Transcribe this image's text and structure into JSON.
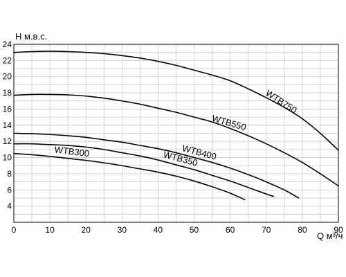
{
  "chart_data": {
    "type": "line",
    "xlabel": "Q м³/ч",
    "ylabel": "Н м.в.с.",
    "xlim": [
      0,
      90
    ],
    "ylim": [
      2,
      24
    ],
    "xticks": [
      0,
      10,
      20,
      30,
      40,
      50,
      60,
      70,
      80,
      90
    ],
    "yticks": [
      4,
      6,
      8,
      10,
      12,
      14,
      16,
      18,
      20,
      22,
      24
    ],
    "grid": true,
    "series": [
      {
        "name": "WTB750",
        "x": [
          0,
          5,
          10,
          15,
          20,
          25,
          30,
          35,
          40,
          45,
          50,
          55,
          60,
          65,
          70,
          75,
          80,
          85,
          90
        ],
        "y": [
          23.0,
          23.1,
          23.15,
          23.1,
          23.0,
          22.85,
          22.6,
          22.3,
          21.9,
          21.4,
          20.8,
          20.2,
          19.5,
          18.5,
          17.4,
          16.2,
          14.8,
          13.0,
          10.9
        ]
      },
      {
        "name": "WTB550",
        "x": [
          0,
          5,
          10,
          15,
          20,
          25,
          30,
          35,
          40,
          45,
          50,
          55,
          60,
          65,
          70,
          75,
          80,
          85,
          90
        ],
        "y": [
          17.7,
          17.8,
          17.8,
          17.75,
          17.6,
          17.35,
          17.0,
          16.6,
          16.1,
          15.6,
          15.0,
          14.4,
          13.6,
          12.7,
          11.7,
          10.6,
          9.4,
          8.0,
          6.5
        ]
      },
      {
        "name": "WTB400",
        "x": [
          0,
          5,
          10,
          15,
          20,
          25,
          30,
          35,
          40,
          45,
          50,
          55,
          60,
          65,
          70,
          75,
          79
        ],
        "y": [
          13.0,
          12.95,
          12.85,
          12.7,
          12.5,
          12.2,
          11.9,
          11.5,
          11.1,
          10.6,
          10.0,
          9.4,
          8.7,
          7.9,
          7.0,
          6.0,
          5.0
        ]
      },
      {
        "name": "WTB350",
        "x": [
          0,
          5,
          10,
          15,
          20,
          25,
          30,
          35,
          40,
          45,
          50,
          55,
          60,
          65,
          70,
          72
        ],
        "y": [
          11.7,
          11.7,
          11.6,
          11.5,
          11.3,
          11.0,
          10.6,
          10.2,
          9.7,
          9.1,
          8.5,
          7.8,
          7.1,
          6.3,
          5.5,
          5.2
        ]
      },
      {
        "name": "WTB300",
        "x": [
          0,
          5,
          10,
          15,
          20,
          25,
          30,
          35,
          40,
          45,
          50,
          55,
          60,
          64
        ],
        "y": [
          10.5,
          10.35,
          10.15,
          9.9,
          9.65,
          9.35,
          9.0,
          8.6,
          8.2,
          7.7,
          7.1,
          6.4,
          5.6,
          4.8
        ]
      }
    ]
  }
}
